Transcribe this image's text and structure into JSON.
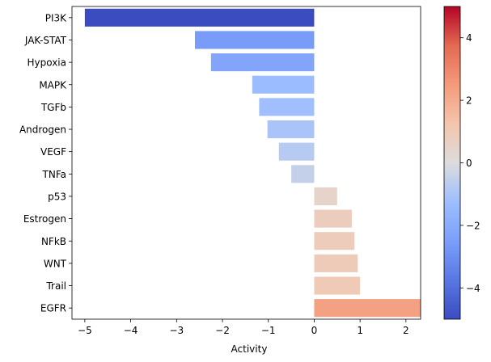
{
  "chart_data": {
    "type": "bar",
    "orientation": "horizontal",
    "categories": [
      "PI3K",
      "JAK-STAT",
      "Hypoxia",
      "MAPK",
      "TGFb",
      "Androgen",
      "VEGF",
      "TNFa",
      "p53",
      "Estrogen",
      "NFkB",
      "WNT",
      "Trail",
      "EGFR"
    ],
    "values": [
      -5.0,
      -2.6,
      -2.25,
      -1.35,
      -1.2,
      -1.02,
      -0.77,
      -0.5,
      0.5,
      0.82,
      0.88,
      0.95,
      1.0,
      2.32
    ],
    "title": "",
    "xlabel": "Activity",
    "ylabel": "",
    "xlim": [
      -5.28,
      2.32
    ],
    "xticks": [
      -5,
      -4,
      -3,
      -2,
      -1,
      0,
      1,
      2
    ],
    "xtick_labels": [
      "−5",
      "−4",
      "−3",
      "−2",
      "−1",
      "0",
      "1",
      "2"
    ],
    "grid": false,
    "colormap": "coolwarm",
    "colorbar": {
      "range": [
        -5,
        5
      ],
      "ticks": [
        4,
        2,
        0,
        -2,
        -4
      ],
      "tick_labels": [
        "4",
        "2",
        "0",
        "−2",
        "−4"
      ]
    }
  }
}
